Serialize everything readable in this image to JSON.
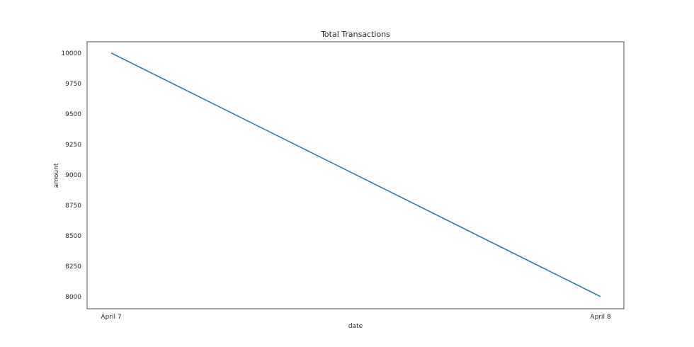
{
  "chart_data": {
    "type": "line",
    "title": "Total Transactions",
    "xlabel": "date",
    "ylabel": "amount",
    "categories": [
      "April 7",
      "April 8"
    ],
    "series": [
      {
        "values": [
          10000,
          8000
        ],
        "color": "#1f77b4"
      }
    ],
    "ylim": [
      7900,
      10092
    ],
    "yticks": [
      8000,
      8250,
      8500,
      8750,
      9000,
      9250,
      9500,
      9750,
      10000
    ],
    "grid": false
  }
}
